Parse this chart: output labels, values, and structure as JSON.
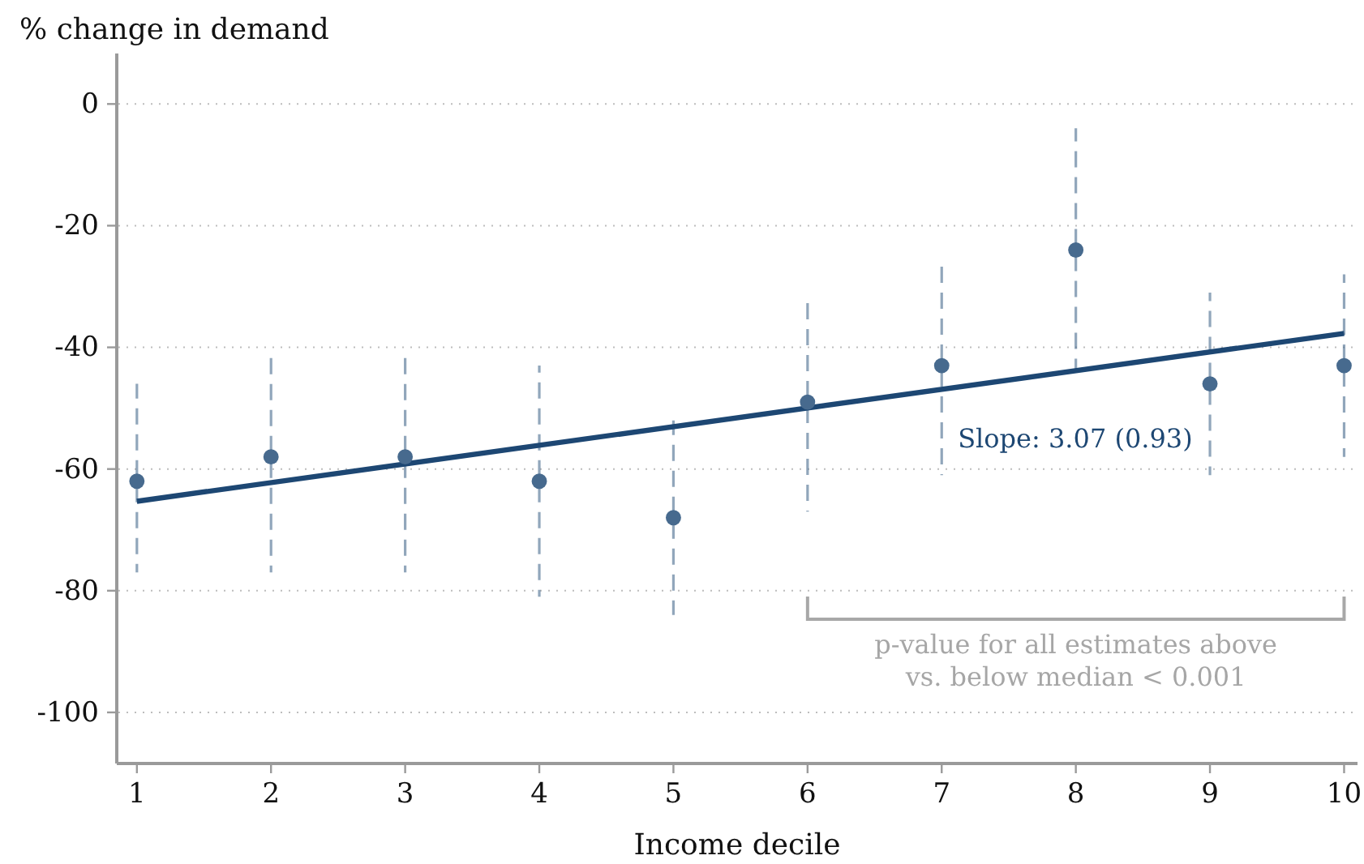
{
  "chart_data": {
    "type": "scatter",
    "xlabel": "Income decile",
    "ylabel": "% change in demand",
    "x": [
      1,
      2,
      3,
      4,
      5,
      6,
      7,
      8,
      9,
      10
    ],
    "xlim": [
      0.85,
      10.1
    ],
    "xticks": [
      1,
      2,
      3,
      4,
      5,
      6,
      7,
      8,
      9,
      10
    ],
    "ylim": [
      -108.4,
      8.3
    ],
    "yticks": [
      -100,
      -80,
      -60,
      -40,
      -20,
      0
    ],
    "grid": "y",
    "series": [
      {
        "color": "#476a8e",
        "marker": "circle",
        "values": [
          -62,
          -58,
          -58,
          -62,
          -68,
          -49,
          -43,
          -24,
          -46,
          -43
        ],
        "errors": [
          [
            -77,
            -46
          ],
          [
            -77,
            -41
          ],
          [
            -77,
            -41
          ],
          [
            -81,
            -43
          ],
          [
            -84,
            -52
          ],
          [
            -67,
            -32
          ],
          [
            -61,
            -26
          ],
          [
            -44,
            -4
          ],
          [
            -61,
            -31
          ],
          [
            -58,
            -28
          ]
        ]
      },
      {
        "type": "line",
        "color": "#1d4773",
        "x": [
          1,
          10
        ],
        "values": [
          -65.3,
          -37.7
        ]
      }
    ],
    "annotations": [
      "Slope: 3.07 (0.93)",
      "p-value for all estimates above\nvs. below median < 0.001"
    ]
  }
}
